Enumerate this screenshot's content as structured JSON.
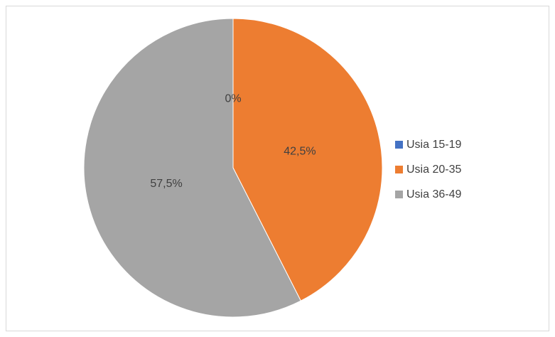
{
  "chart_data": {
    "type": "pie",
    "categories": [
      "Usia 15-19",
      "Usia 20-35",
      "Usia 36-49"
    ],
    "values": [
      0,
      42.5,
      57.5
    ],
    "value_labels": [
      "0%",
      "42,5%",
      "57,5%"
    ],
    "colors": [
      "#4472c4",
      "#ed7d31",
      "#a5a5a5"
    ],
    "legend": "right"
  }
}
